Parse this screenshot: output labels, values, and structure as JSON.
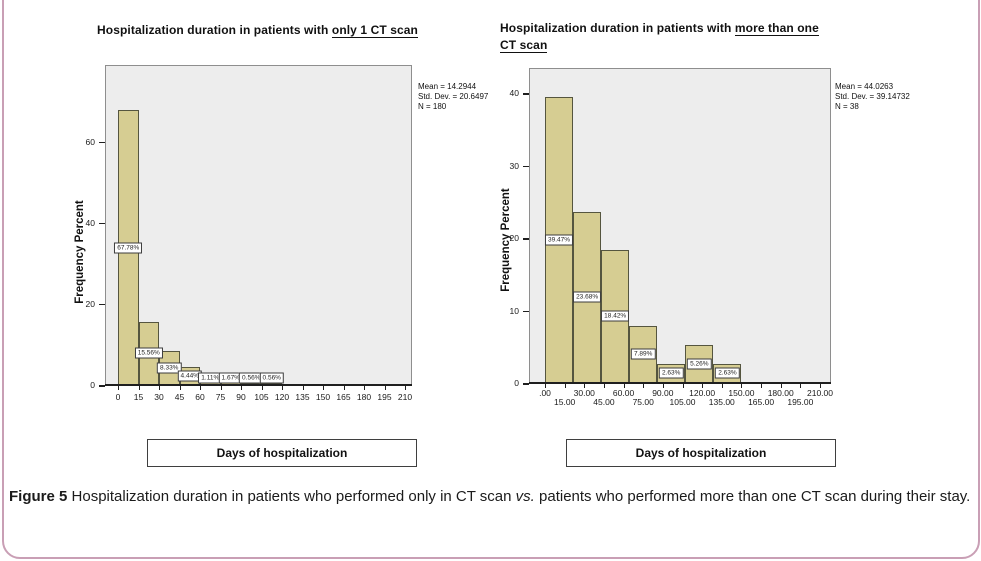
{
  "figure_caption": {
    "label": "Figure 5",
    "text1": "Hospitalization duration in patients who performed only in CT scan",
    "vs": "vs.",
    "text2": "patients who performed more than one CT scan during their stay."
  },
  "chart_data": [
    {
      "type": "bar",
      "title": "Hospitalization duration in patients with only 1 CT scan",
      "title_prefix": "Hospitalization duration in patients with ",
      "title_underlined": "only 1 CT scan",
      "ylabel": "Frequency Percent",
      "xlabel": "Days of hospitalization",
      "xlim": [
        0,
        210
      ],
      "ylim": [
        0,
        79
      ],
      "y_ticks": [
        0,
        20,
        40,
        60
      ],
      "x_tick_values": [
        0,
        15,
        30,
        45,
        60,
        75,
        90,
        105,
        120,
        135,
        150,
        165,
        180,
        195,
        210
      ],
      "x_tick_labels": [
        "0",
        "15",
        "30",
        "45",
        "60",
        "75",
        "90",
        "105",
        "120",
        "135",
        "150",
        "165",
        "180",
        "195",
        "210"
      ],
      "stagger_x_labels": false,
      "bins": [
        {
          "x0": 0,
          "x1": 15,
          "value": 67.78,
          "label": "67.78%"
        },
        {
          "x0": 15,
          "x1": 30,
          "value": 15.56,
          "label": "15.56%"
        },
        {
          "x0": 30,
          "x1": 45,
          "value": 8.33,
          "label": "8.33%"
        },
        {
          "x0": 45,
          "x1": 60,
          "value": 4.44,
          "label": "4.44%"
        },
        {
          "x0": 60,
          "x1": 75,
          "value": 1.11,
          "label": "1.11%"
        },
        {
          "x0": 75,
          "x1": 90,
          "value": 1.67,
          "label": "1.67%"
        },
        {
          "x0": 90,
          "x1": 105,
          "value": 0.56,
          "label": "0.56%"
        },
        {
          "x0": 105,
          "x1": 120,
          "value": 0.56,
          "label": "0.56%"
        }
      ],
      "stats_lines": [
        "Mean = 14.2944",
        "Std. Dev. = 20.6497",
        "N = 180"
      ],
      "colors": {
        "bar_fill": "#d6cd92",
        "bar_border": "#55553f",
        "plot_bg": "#ededed",
        "plot_border": "#8e8e8e",
        "axis": "#1f1f1f"
      }
    },
    {
      "type": "bar",
      "title": "Hospitalization duration in patients with more than one CT scan",
      "title_prefix": "Hospitalization duration in patients with ",
      "title_underlined": "more than one CT scan",
      "title_underlined_parts": [
        "more than one",
        "CT scan"
      ],
      "ylabel": "Frequency Percent",
      "xlabel": "Days of hospitalization",
      "xlim": [
        0,
        210
      ],
      "ylim": [
        0,
        43.5
      ],
      "y_ticks": [
        0,
        10,
        20,
        30,
        40
      ],
      "x_tick_values": [
        0,
        15,
        30,
        45,
        60,
        75,
        90,
        105,
        120,
        135,
        150,
        165,
        180,
        195,
        210
      ],
      "x_tick_labels": [
        ".00",
        "15.00",
        "30.00",
        "45.00",
        "60.00",
        "75.00",
        "90.00",
        "105.00",
        "120.00",
        "135.00",
        "150.00",
        "165.00",
        "180.00",
        "195.00",
        "210.00"
      ],
      "stagger_x_labels": true,
      "bins": [
        {
          "x0": 0,
          "x1": 21.4,
          "value": 39.47,
          "label": "39.47%"
        },
        {
          "x0": 21.4,
          "x1": 42.9,
          "value": 23.68,
          "label": "23.68%"
        },
        {
          "x0": 42.9,
          "x1": 64.3,
          "value": 18.42,
          "label": "18.42%"
        },
        {
          "x0": 64.3,
          "x1": 85.7,
          "value": 7.89,
          "label": "7.89%"
        },
        {
          "x0": 85.7,
          "x1": 107.1,
          "value": 2.63,
          "label": "2.63%"
        },
        {
          "x0": 107.1,
          "x1": 128.6,
          "value": 5.26,
          "label": "5.26%"
        },
        {
          "x0": 128.6,
          "x1": 150,
          "value": 2.63,
          "label": "2.63%"
        }
      ],
      "stats_lines": [
        "Mean = 44.0263",
        "Std. Dev. = 39.14732",
        "N = 38"
      ],
      "colors": {
        "bar_fill": "#d6cd92",
        "bar_border": "#55553f",
        "plot_bg": "#ededed",
        "plot_border": "#8e8e8e",
        "axis": "#1f1f1f"
      }
    }
  ]
}
